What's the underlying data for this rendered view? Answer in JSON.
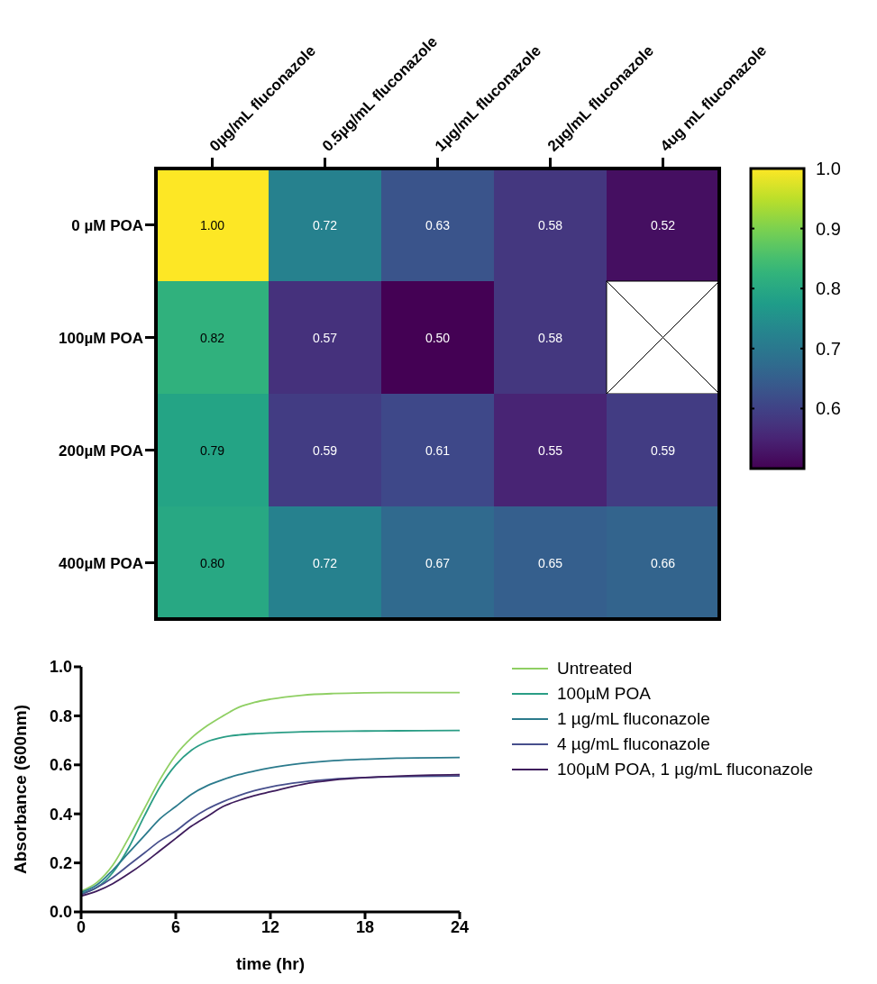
{
  "chart_data": [
    {
      "type": "heatmap",
      "categories": [
        "0µg/mL  fluconazole",
        "0.5µg/mL fluconazole",
        "1µg/mL fluconazole",
        "2µg/mL fluconazole",
        "4ug mL fluconazole"
      ],
      "y_categories": [
        "0 µM POA",
        "100µM POA",
        "200µM POA",
        "400µM POA"
      ],
      "cells": [
        [
          1.0,
          0.72,
          0.63,
          0.58,
          0.52
        ],
        [
          0.82,
          0.57,
          0.5,
          0.58,
          null
        ],
        [
          0.79,
          0.59,
          0.61,
          0.55,
          0.59
        ],
        [
          0.8,
          0.72,
          0.67,
          0.65,
          0.66
        ]
      ],
      "cell_labels": [
        [
          "1.00",
          "0.72",
          "0.63",
          "0.58",
          "0.52"
        ],
        [
          "0.82",
          "0.57",
          "0.50",
          "0.58",
          null
        ],
        [
          "0.79",
          "0.59",
          "0.61",
          "0.55",
          "0.59"
        ],
        [
          "0.80",
          "0.72",
          "0.67",
          "0.65",
          "0.66"
        ]
      ],
      "clim": [
        0.5,
        1.0
      ],
      "cticks": [
        0.6,
        0.7,
        0.8,
        0.9,
        {
          "value": 1.0,
          "label": "1.0"
        }
      ]
    },
    {
      "type": "line",
      "xlabel": "time (hr)",
      "ylabel": "Absorbance (600nm)",
      "x": [
        0,
        1,
        2,
        3,
        4,
        5,
        6,
        7,
        8,
        9,
        10,
        11,
        12,
        14,
        16,
        18,
        20,
        24
      ],
      "series": [
        {
          "name": "Untreated",
          "color": "#8fcf63",
          "values": [
            0.085,
            0.12,
            0.19,
            0.3,
            0.42,
            0.54,
            0.64,
            0.71,
            0.76,
            0.8,
            0.835,
            0.855,
            0.868,
            0.884,
            0.891,
            0.894,
            0.895,
            0.895
          ]
        },
        {
          "name": "100µM POA",
          "color": "#2a9d85",
          "values": [
            0.075,
            0.1,
            0.16,
            0.26,
            0.39,
            0.51,
            0.6,
            0.66,
            0.695,
            0.713,
            0.722,
            0.727,
            0.73,
            0.735,
            0.737,
            0.738,
            0.739,
            0.74
          ]
        },
        {
          "name": "1 µg/mL fluconazole",
          "color": "#2b7a8c",
          "values": [
            0.08,
            0.11,
            0.17,
            0.24,
            0.31,
            0.38,
            0.43,
            0.48,
            0.515,
            0.54,
            0.56,
            0.575,
            0.588,
            0.606,
            0.617,
            0.623,
            0.627,
            0.63
          ]
        },
        {
          "name": "4 µg/mL fluconazole",
          "color": "#474f8c",
          "values": [
            0.07,
            0.1,
            0.14,
            0.19,
            0.24,
            0.29,
            0.33,
            0.38,
            0.42,
            0.45,
            0.475,
            0.495,
            0.51,
            0.53,
            0.542,
            0.548,
            0.552,
            0.555
          ]
        },
        {
          "name": "100µM POA, 1 µg/mL fluconazole",
          "color": "#3e1c5c",
          "values": [
            0.065,
            0.085,
            0.115,
            0.155,
            0.2,
            0.25,
            0.3,
            0.35,
            0.39,
            0.43,
            0.455,
            0.475,
            0.49,
            0.52,
            0.538,
            0.548,
            0.554,
            0.56
          ]
        }
      ],
      "xlim": [
        0,
        24
      ],
      "xticks": [
        0,
        6,
        12,
        18,
        24
      ],
      "ylim": [
        0,
        1.0
      ],
      "yticks": [
        {
          "value": 0,
          "label": "0.0"
        },
        0.2,
        0.4,
        0.6,
        0.8,
        {
          "value": 1.0,
          "label": "1.0"
        }
      ],
      "legend": "right"
    }
  ]
}
